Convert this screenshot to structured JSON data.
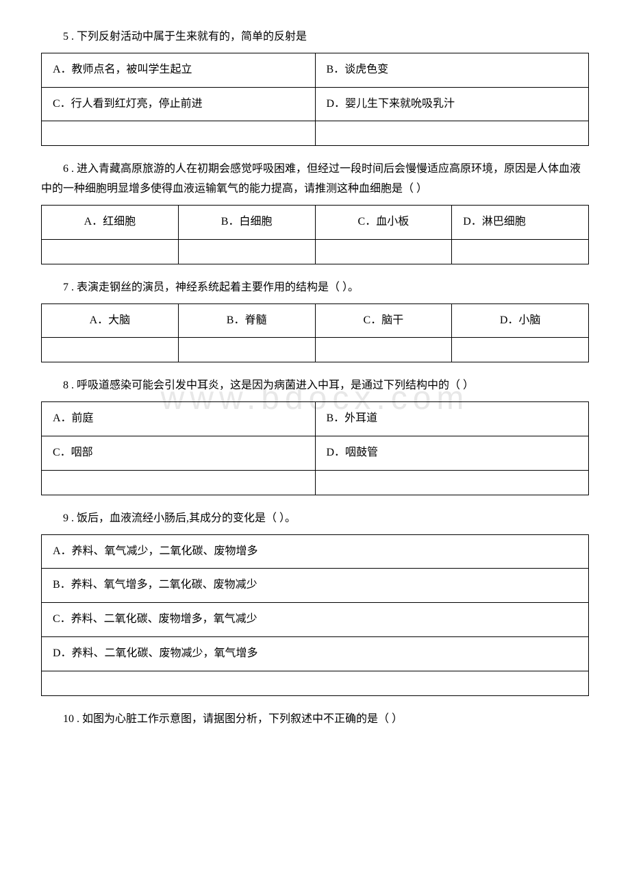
{
  "q5": {
    "text": "5 . 下列反射活动中属于生来就有的，简单的反射是",
    "options": {
      "a": "A．教师点名，被叫学生起立",
      "b": "B．谈虎色变",
      "c": "C．行人看到红灯亮，停止前进",
      "d": "D．婴儿生下来就吮吸乳汁"
    }
  },
  "q6": {
    "text": "6 . 进入青藏高原旅游的人在初期会感觉呼吸困难，但经过一段时间后会慢慢适应高原环境，原因是人体血液中的一种细胞明显增多使得血液运输氧气的能力提高，请推测这种血细胞是（ ）",
    "options": {
      "a": "A．红细胞",
      "b": "B．白细胞",
      "c": "C．血小板",
      "d": "D．淋巴细胞"
    }
  },
  "q7": {
    "text": "7 . 表演走钢丝的演员，神经系统起着主要作用的结构是（ ）。",
    "options": {
      "a": "A．大脑",
      "b": "B．脊髓",
      "c": "C．脑干",
      "d": "D．小脑"
    }
  },
  "q8": {
    "text": "8 . 呼吸道感染可能会引发中耳炎，这是因为病菌进入中耳，是通过下列结构中的（ ）",
    "options": {
      "a": "A．前庭",
      "b": "B．外耳道",
      "c": "C．咽部",
      "d": "D．咽鼓管"
    }
  },
  "q9": {
    "text": "9 . 饭后，血液流经小肠后,其成分的变化是（ ）。",
    "options": {
      "a": "A．养料、氧气减少，二氧化碳、废物增多",
      "b": "B．养料、氧气增多，二氧化碳、废物减少",
      "c": "C．养料、二氧化碳、废物增多，氧气减少",
      "d": "D．养料、二氧化碳、废物减少，氧气增多"
    }
  },
  "q10": {
    "text": "10 . 如图为心脏工作示意图，请据图分析，下列叙述中不正确的是（  ）"
  },
  "watermark": "www.bdocx.com"
}
